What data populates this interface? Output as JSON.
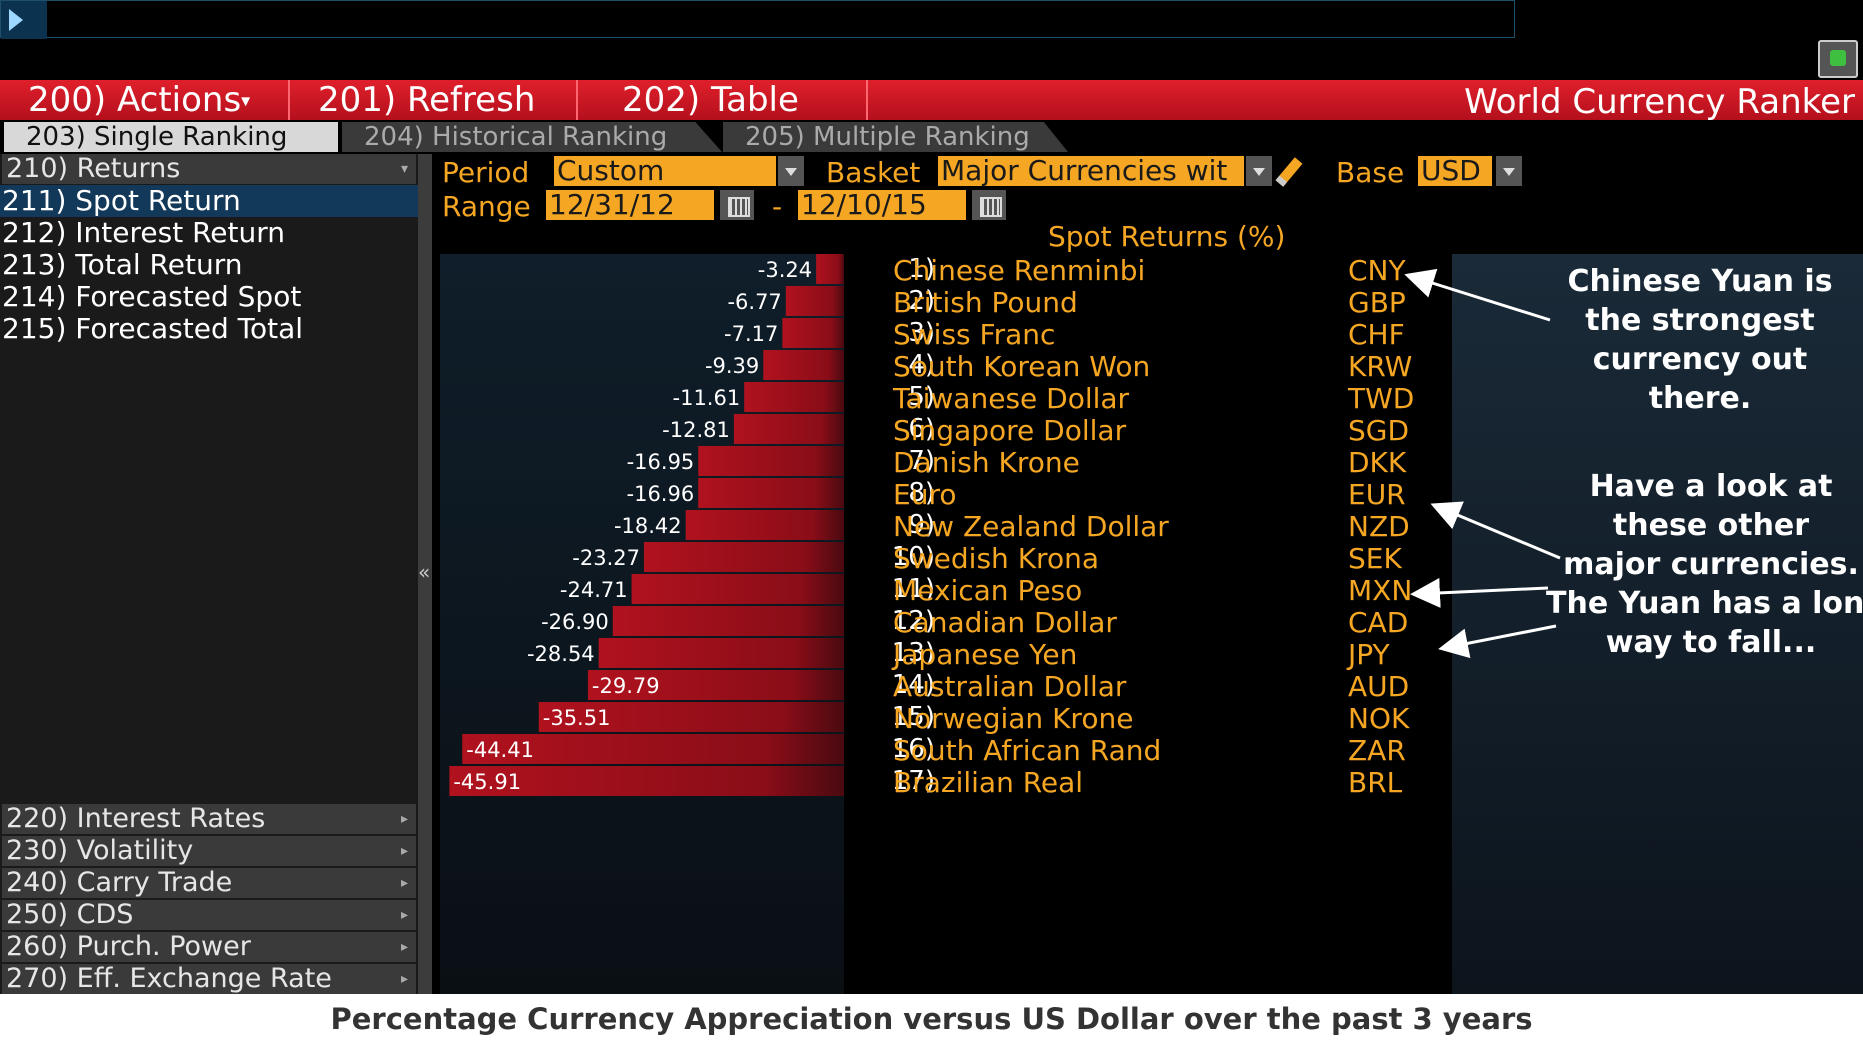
{
  "toolbar": {
    "actions": "200) Actions",
    "actions_caret": "▾",
    "refresh": "201) Refresh",
    "table": "202) Table",
    "app_title": "World Currency Ranker"
  },
  "tabs": [
    "203) Single Ranking",
    "204) Historical Ranking",
    "205) Multiple Ranking"
  ],
  "sidebar": {
    "returns_header": "210) Returns",
    "items": [
      "211) Spot Return",
      "212) Interest Return",
      "213) Total Return",
      "214) Forecasted Spot",
      "215) Forecasted Total"
    ],
    "bottom_headers": [
      "220) Interest Rates",
      "230) Volatility",
      "240) Carry Trade",
      "250) CDS",
      "260) Purch. Power",
      "270) Eff. Exchange Rate"
    ],
    "collapse_glyph": "«"
  },
  "controls": {
    "period_label": "Period",
    "period_value": "Custom",
    "basket_label": "Basket",
    "basket_value": "Major Currencies wit",
    "base_label": "Base",
    "base_value": "USD",
    "range_label": "Range",
    "range_start": "12/31/12",
    "range_sep": "-",
    "range_end": "12/10/15"
  },
  "chart_data": {
    "type": "bar",
    "title": "Spot Returns (%)",
    "orientation": "horizontal",
    "categories": [
      "Chinese Renminbi",
      "British Pound",
      "Swiss Franc",
      "South Korean Won",
      "Taiwanese Dollar",
      "Singapore Dollar",
      "Danish Krone",
      "Euro",
      "New Zealand Dollar",
      "Swedish Krona",
      "Mexican Peso",
      "Canadian Dollar",
      "Japanese Yen",
      "Australian Dollar",
      "Norwegian Krone",
      "South African Rand",
      "Brazilian Real"
    ],
    "values": [
      -3.24,
      -6.77,
      -7.17,
      -9.39,
      -11.61,
      -12.81,
      -16.95,
      -16.96,
      -18.42,
      -23.27,
      -24.71,
      -26.9,
      -28.54,
      -29.79,
      -35.51,
      -44.41,
      -45.91
    ],
    "value_labels": [
      "-3.24",
      "-6.77",
      "-7.17",
      "-9.39",
      "-11.61",
      "-12.81",
      "-16.95",
      "-16.96",
      "-18.42",
      "-23.27",
      "-24.71",
      "-26.90",
      "-28.54",
      "-29.79",
      "-35.51",
      "-44.41",
      "-45.91"
    ],
    "xlim": [
      -47,
      0
    ],
    "bar_color": "#b0121e"
  },
  "ranking": [
    {
      "num": "1)",
      "name": "Chinese Renminbi",
      "code": "CNY"
    },
    {
      "num": "2)",
      "name": "British Pound",
      "code": "GBP"
    },
    {
      "num": "3)",
      "name": "Swiss Franc",
      "code": "CHF"
    },
    {
      "num": "4)",
      "name": "South Korean Won",
      "code": "KRW"
    },
    {
      "num": "5)",
      "name": "Taiwanese Dollar",
      "code": "TWD"
    },
    {
      "num": "6)",
      "name": "Singapore Dollar",
      "code": "SGD"
    },
    {
      "num": "7)",
      "name": "Danish Krone",
      "code": "DKK"
    },
    {
      "num": "8)",
      "name": "Euro",
      "code": "EUR"
    },
    {
      "num": "9)",
      "name": "New Zealand Dollar",
      "code": "NZD"
    },
    {
      "num": "10)",
      "name": "Swedish Krona",
      "code": "SEK"
    },
    {
      "num": "11)",
      "name": "Mexican Peso",
      "code": "MXN"
    },
    {
      "num": "12)",
      "name": "Canadian Dollar",
      "code": "CAD"
    },
    {
      "num": "13)",
      "name": "Japanese Yen",
      "code": "JPY"
    },
    {
      "num": "14)",
      "name": "Australian Dollar",
      "code": "AUD"
    },
    {
      "num": "15)",
      "name": "Norwegian Krone",
      "code": "NOK"
    },
    {
      "num": "16)",
      "name": "South African Rand",
      "code": "ZAR"
    },
    {
      "num": "17)",
      "name": "Brazilian Real",
      "code": "BRL"
    }
  ],
  "annotations": {
    "note1": [
      "Chinese Yuan is",
      "the strongest",
      "currency out there."
    ],
    "note2": [
      "Have a look at",
      "these other",
      "major currencies.",
      "The Yuan has a long",
      "way to fall..."
    ]
  },
  "caption": "Percentage Currency Appreciation versus US Dollar over the past 3 years",
  "colors": {
    "accent": "#f5a623",
    "bar": "#b0121e",
    "menu": "#d41a26",
    "selected": "#12395a"
  }
}
